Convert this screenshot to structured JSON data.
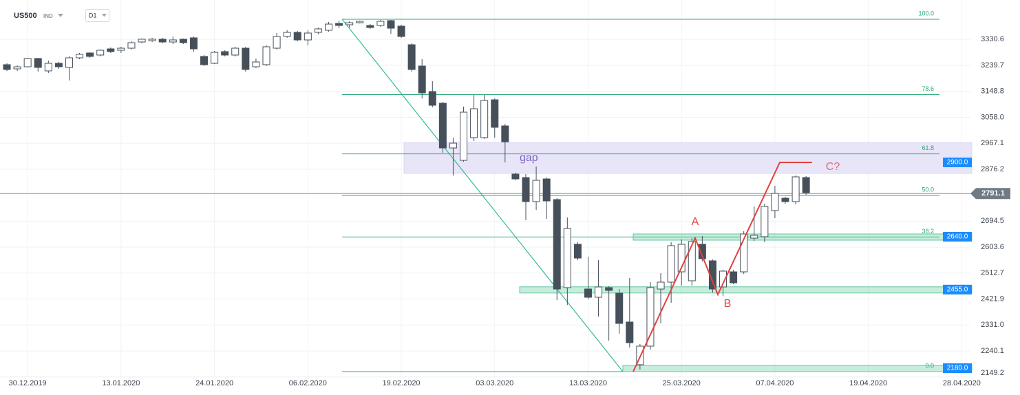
{
  "header": {
    "symbol": "US500",
    "market": "IND",
    "timeframe": "D1"
  },
  "chart_data": {
    "type": "candlestick",
    "categories": [
      null,
      null,
      "30.12.2019",
      null,
      null,
      null,
      null,
      null,
      null,
      null,
      null,
      "13.01.2020",
      null,
      null,
      null,
      null,
      null,
      null,
      null,
      null,
      "24.01.2020",
      null,
      null,
      null,
      null,
      null,
      null,
      null,
      null,
      "06.02.2020",
      null,
      null,
      null,
      null,
      null,
      null,
      null,
      null,
      "19.02.2020",
      null,
      null,
      null,
      null,
      null,
      null,
      null,
      null,
      "03.03.2020",
      null,
      null,
      null,
      null,
      null,
      null,
      null,
      null,
      "13.03.2020",
      null,
      null,
      null,
      null,
      null,
      null,
      null,
      null,
      "25.03.2020",
      null,
      null,
      null,
      null,
      null,
      null,
      null,
      null,
      "07.04.2020",
      null,
      null,
      null,
      null,
      null,
      null,
      null,
      null,
      "19.04.2020",
      null,
      null,
      null,
      null,
      null,
      null,
      null,
      null,
      "28.04.2020"
    ],
    "open": [
      3242.0,
      3227.5,
      3234.7,
      3263.6,
      3220.3,
      3246.8,
      3232.3,
      3266.0,
      3282.9,
      3275.7,
      3297.3,
      3292.5,
      3299.7,
      3321.4,
      3326.2,
      3331.1,
      3321.4,
      3331.1,
      3335.9,
      3270.8,
      3246.8,
      3287.7,
      3275.7,
      3299.7,
      3234.7,
      3242.0,
      3299.7,
      3340.7,
      3355.1,
      3328.6,
      3355.1,
      3362.4,
      3386.4,
      3381.6,
      3388.8,
      3379.2,
      3379.2,
      3396.1,
      3376.8,
      3311.8,
      3237.1,
      3148.0,
      3107.1,
      2950.6,
      2907.2,
      2986.7,
      2986.7,
      3119.1,
      3027.6,
      2859.1,
      2847.0,
      2762.8,
      2842.2,
      2770.0,
      2461.8,
      2613.5,
      2456.9,
      2428.1,
      2461.8,
      2442.5,
      2341.4,
      2192.1,
      2257.1,
      2456.9,
      2481.0,
      2517.1,
      2485.8,
      2613.5,
      2555.7,
      2464.2,
      2517.1,
      2517.1,
      2635.1,
      2640.0,
      2731.4,
      2774.8,
      2762.8,
      2847.0,
      null,
      null,
      null,
      null,
      null,
      null,
      null,
      null,
      null,
      null,
      null,
      null,
      null,
      null,
      null
    ],
    "high": [
      3246.8,
      3239.5,
      3266.0,
      3266.0,
      3256.4,
      3251.6,
      3270.8,
      3282.9,
      3285.3,
      3294.9,
      3302.1,
      3304.6,
      3323.8,
      3333.5,
      3335.9,
      3335.9,
      3340.7,
      3333.5,
      3340.7,
      3275.7,
      3290.1,
      3292.5,
      3304.6,
      3304.6,
      3263.6,
      3309.4,
      3352.7,
      3362.4,
      3359.9,
      3362.4,
      3372.0,
      3391.2,
      3396.1,
      3393.7,
      3396.1,
      3384.0,
      3398.5,
      3398.5,
      3381.6,
      3316.6,
      3261.2,
      3184.2,
      3111.9,
      2986.7,
      3095.1,
      3136.0,
      3136.0,
      3123.9,
      3034.9,
      2863.9,
      2859.1,
      2885.6,
      2847.0,
      2774.8,
      2707.4,
      2620.7,
      2570.1,
      2558.1,
      2466.6,
      2456.9,
      2495.5,
      2264.3,
      2481.0,
      2512.3,
      2620.7,
      2630.3,
      2635.1,
      2642.4,
      2560.5,
      2524.4,
      2524.4,
      2659.2,
      2745.9,
      2755.5,
      2818.1,
      2779.6,
      2854.3,
      2851.8,
      null,
      null,
      null,
      null,
      null,
      null,
      null,
      null,
      null,
      null,
      null,
      null,
      null,
      null,
      null
    ],
    "low": [
      3220.3,
      3220.3,
      3232.3,
      3217.9,
      3213.1,
      3227.5,
      3186.5,
      3261.2,
      3266.0,
      3270.8,
      3282.9,
      3282.9,
      3294.9,
      3316.6,
      3321.4,
      3316.6,
      3314.2,
      3314.2,
      3287.7,
      3237.1,
      3244.4,
      3270.8,
      3270.8,
      3217.9,
      3229.9,
      3237.1,
      3294.9,
      3335.9,
      3323.8,
      3309.4,
      3347.9,
      3357.5,
      3369.6,
      3372.0,
      3386.4,
      3367.2,
      3374.4,
      3350.3,
      3335.9,
      3217.9,
      3123.9,
      3092.7,
      2933.7,
      2854.3,
      2902.4,
      2974.7,
      2981.9,
      2986.7,
      2900.0,
      2837.4,
      2697.7,
      2733.9,
      2702.5,
      2418.4,
      2401.6,
      2558.1,
      2420.8,
      2360.6,
      2276.3,
      2300.4,
      2252.3,
      2175.2,
      2245.0,
      2336.5,
      2408.8,
      2468.9,
      2468.9,
      2553.3,
      2444.9,
      2432.9,
      2473.8,
      2509.9,
      2625.5,
      2620.7,
      2705.0,
      2755.5,
      2753.1,
      2786.8,
      null,
      null,
      null,
      null,
      null,
      null,
      null,
      null,
      null,
      null,
      null,
      null,
      null,
      null,
      null
    ],
    "close": [
      3225.1,
      3234.7,
      3263.6,
      3232.3,
      3246.8,
      3234.7,
      3266.0,
      3278.1,
      3270.8,
      3292.5,
      3287.7,
      3299.7,
      3319.0,
      3331.1,
      3331.1,
      3321.4,
      3328.6,
      3319.0,
      3297.3,
      3242.0,
      3285.3,
      3275.7,
      3299.7,
      3225.1,
      3251.6,
      3304.6,
      3340.7,
      3355.1,
      3328.6,
      3352.7,
      3367.2,
      3384.0,
      3379.2,
      3388.8,
      3393.7,
      3372.0,
      3393.7,
      3369.6,
      3340.7,
      3225.1,
      3143.2,
      3099.9,
      2950.6,
      2967.4,
      3075.8,
      3087.8,
      3116.7,
      3022.8,
      2972.3,
      2842.2,
      2762.8,
      2837.4,
      2765.2,
      2456.9,
      2668.8,
      2565.3,
      2428.1,
      2464.2,
      2452.1,
      2336.5,
      2269.1,
      2257.1,
      2461.8,
      2481.0,
      2608.6,
      2613.5,
      2623.1,
      2562.9,
      2456.9,
      2519.6,
      2478.6,
      2649.6,
      2644.8,
      2745.9,
      2791.6,
      2762.8,
      2849.4,
      2794.1,
      null,
      null,
      null,
      null,
      null,
      null,
      null,
      null,
      null,
      null,
      null,
      null,
      null,
      null,
      null
    ],
    "up_color": "#ffffff",
    "down_color": "#46505a",
    "ylim": [
      2148.7,
      3468.3
    ],
    "yticks": [
      3330.6,
      3239.7,
      3148.8,
      {
        "value": 3058,
        "label": "3058.0"
      },
      2967.1,
      2876.2,
      2694.5,
      2603.6,
      2512.7,
      2421.9,
      {
        "value": 2331,
        "label": "2331.0"
      },
      2240.1,
      2149.2
    ],
    "grid": true,
    "last_price": 2791.1,
    "fibonacci": {
      "high": 3400.9,
      "low": 2168.0,
      "color": "#2aa876",
      "levels": [
        {
          "value": 100,
          "label": "100.0"
        },
        78.6,
        61.8,
        {
          "value": 50,
          "label": "50.0"
        },
        38.2,
        {
          "value": 0,
          "label": "0.0"
        }
      ]
    },
    "gap_zone": {
      "label": "gap",
      "high": 2969.8,
      "low": 2861.5
    },
    "levels": [
      {
        "value": 2900,
        "label": "2900.0"
      },
      {
        "value": 2640,
        "label": "2640.0"
      },
      {
        "value": 2455,
        "label": "2455.0"
      },
      {
        "value": 2180,
        "label": "2180.0"
      }
    ],
    "pattern_labels": [
      "A",
      "B",
      "C?"
    ]
  }
}
